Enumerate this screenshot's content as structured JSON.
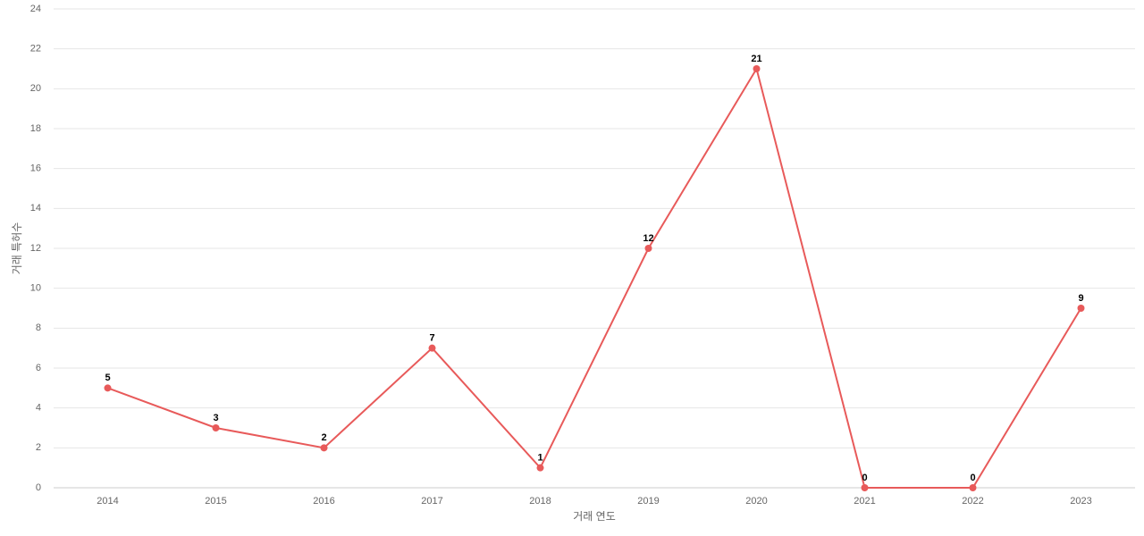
{
  "chart_data": {
    "type": "line",
    "x_label": "거래 연도",
    "y_label": "거래 특허수",
    "categories": [
      "2014",
      "2015",
      "2016",
      "2017",
      "2018",
      "2019",
      "2020",
      "2021",
      "2022",
      "2023"
    ],
    "series": [
      {
        "name": "거래 특허수",
        "color": "#e85a5a",
        "values": [
          5,
          3,
          2,
          7,
          1,
          12,
          21,
          0,
          0,
          9
        ]
      }
    ],
    "ylim": [
      0,
      24
    ],
    "yticks": [
      0,
      2,
      4,
      6,
      8,
      10,
      12,
      14,
      16,
      18,
      20,
      22,
      24
    ],
    "grid": true
  }
}
